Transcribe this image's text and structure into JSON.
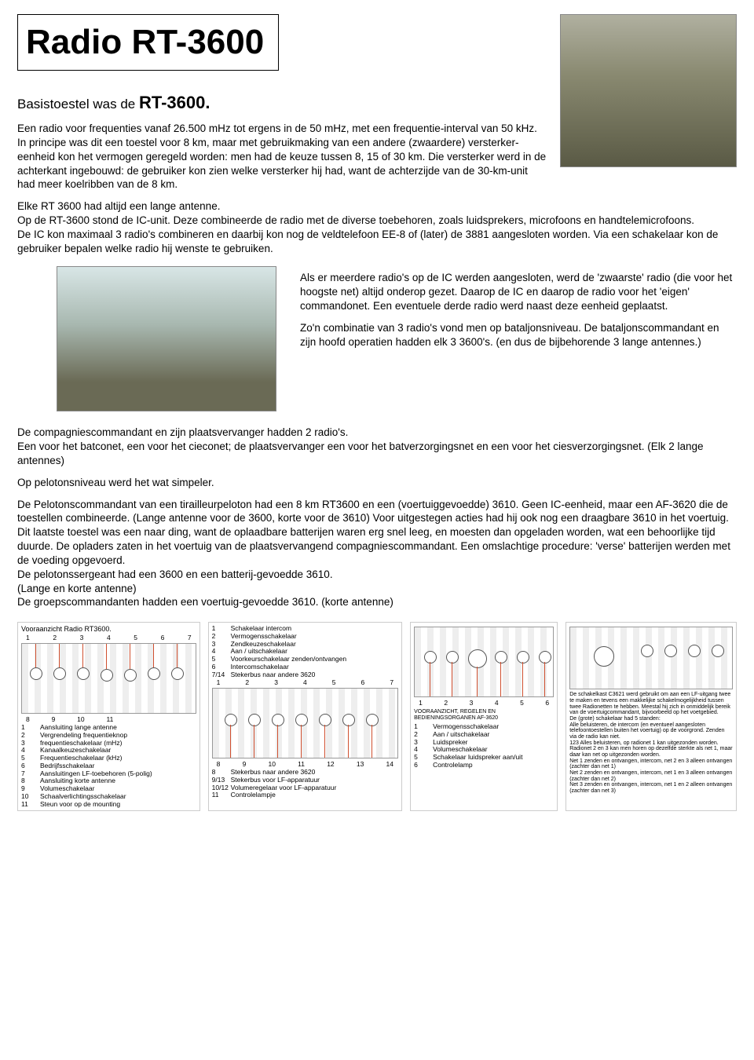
{
  "title": "Radio RT-3600",
  "subtitle_prefix": "Basistoestel was de ",
  "subtitle_model": "RT-3600.",
  "intro_p1": "Een radio voor frequenties vanaf 26.500 mHz tot ergens in de 50 mHz, met een frequentie-interval van 50 kHz. In principe was dit een toestel voor 8 km, maar met gebruikmaking van een andere (zwaardere) versterker-eenheid kon het vermogen geregeld worden: men had de keuze tussen 8, 15 of 30 km. Die versterker werd in de achterkant ingebouwd: de gebruiker kon zien welke versterker hij had, want de achterzijde van de 30-km-unit had meer koelribben van de 8 km.",
  "intro_p2_a": "Elke RT 3600 had altijd een lange antenne.",
  "intro_p2_b": "Op de RT-3600 stond de IC-unit. Deze combineerde de radio met de diverse toebehoren, zoals luidsprekers, microfoons en handtelemicrofoons.",
  "intro_p2_c": "De IC kon maximaal 3 radio's combineren en daarbij kon nog de veldtelefoon EE-8 of (later) de 3881 aangesloten worden. Via een schakelaar kon de gebruiker bepalen welke radio hij wenste te gebruiken.",
  "mid_p1": "Als er meerdere radio's op de IC werden aangesloten, werd de 'zwaarste' radio (die voor het hoogste net) altijd onderop gezet. Daarop de IC en daarop de radio voor het 'eigen' commandonet. Een eventuele derde radio werd naast deze eenheid geplaatst.",
  "mid_p2": "Zo'n combinatie van 3 radio's vond men op bataljonsniveau. De bataljonscommandant en zijn hoofd operatien hadden elk 3 3600's. (en dus de bijbehorende 3 lange antennes.)",
  "lower_p1": "De compagniescommandant en zijn plaatsvervanger hadden 2 radio's.",
  "lower_p2": "Een voor het batconet, een voor het cieconet; de plaatsvervanger een voor het batverzorgingsnet en een voor het ciesverzorgingsnet. (Elk 2 lange antennes)",
  "lower_p3": "Op pelotonsniveau werd het wat simpeler.",
  "lower_p4": "De Pelotonscommandant van een tirailleurpeloton had een 8 km RT3600 en een (voertuiggevoedde) 3610. Geen IC-eenheid, maar een AF-3620 die de toestellen combineerde. (Lange antenne voor de 3600, korte voor de 3610) Voor uitgestegen acties had hij ook nog een draagbare 3610 in het voertuig. Dit laatste toestel was een naar ding, want de oplaadbare batterijen waren erg snel leeg, en moesten dan opgeladen worden, wat een behoorlijke tijd duurde. De opladers zaten in het voertuig van de plaatsvervangend compagniescommandant. Een omslachtige procedure: 'verse' batterijen werden met de voeding opgevoerd.",
  "lower_p5": "De pelotonssergeant had een 3600 en een batterij-gevoedde 3610.",
  "lower_p6": "(Lange en korte antenne)",
  "lower_p7": "De groepscommandanten hadden een voertuig-gevoedde 3610. (korte antenne)",
  "diagrams": {
    "d1": {
      "title": "Vooraanzicht Radio RT3600.",
      "numbers_top": [
        "1",
        "2",
        "3",
        "4",
        "5",
        "6",
        "7"
      ],
      "legend": [
        [
          "1",
          "Aansluiting lange antenne"
        ],
        [
          "2",
          "Vergrendeling frequentieknop"
        ],
        [
          "3",
          "frequentieschakelaar (mHz)"
        ],
        [
          "4",
          "Kanaalkeuzeschakelaar"
        ],
        [
          "5",
          "Frequentieschakelaar (kHz)"
        ],
        [
          "6",
          "Bedrijfsschakelaar"
        ],
        [
          "7",
          "Aansluitingen LF-toebehoren (5-polig)"
        ],
        [
          "8",
          "Aansluiting korte antenne"
        ],
        [
          "9",
          "Volumeschakelaar"
        ],
        [
          "10",
          "Schaalverlichtingsschakelaar"
        ],
        [
          "11",
          "Steun voor op de mounting"
        ]
      ],
      "numbers_bot": [
        "8",
        "9",
        "10",
        "11"
      ]
    },
    "d2": {
      "legend_top": [
        [
          "1",
          "Schakelaar intercom"
        ],
        [
          "2",
          "Vermogensschakelaar"
        ],
        [
          "3",
          "Zendkeuzeschakelaar"
        ],
        [
          "4",
          "Aan / uitschakelaar"
        ],
        [
          "5",
          "Voorkeurschakelaar zenden/ontvangen"
        ],
        [
          "6",
          "Intercomschakelaar"
        ],
        [
          "7/14",
          "Stekerbus naar andere 3620"
        ]
      ],
      "numbers_mid": [
        "1",
        "2",
        "3",
        "4",
        "5",
        "6",
        "7"
      ],
      "legend_bot": [
        [
          "8",
          "Stekerbus naar andere 3620"
        ],
        [
          "9/13",
          "Stekerbus voor LF-apparatuur"
        ],
        [
          "10/12",
          "Volumeregelaar voor LF-apparatuur"
        ],
        [
          "11",
          "Controlelampje"
        ]
      ],
      "numbers_bot": [
        "8",
        "9",
        "10",
        "11",
        "12",
        "13",
        "14"
      ]
    },
    "d3": {
      "numbers_top": [
        "1",
        "2",
        "3",
        "4",
        "5",
        "6"
      ],
      "legend": [
        [
          "1",
          "Vermogensschakelaar"
        ],
        [
          "2",
          "Aan / uitschakelaar"
        ],
        [
          "3",
          "Luidspreker"
        ],
        [
          "4",
          "Volumeschakelaar"
        ],
        [
          "5",
          "Schakelaar luidspreker aan/uit"
        ],
        [
          "6",
          "Controlelamp"
        ]
      ],
      "caption": "VOORAANZICHT, REGELEN EN BEDIENINGSORGANEN AF-3620"
    },
    "d4": {
      "fine": [
        "De schakelkast C3621 werd gebruikt om aan een LF-uitgang twee te maken en tevens een makkelijke schakelmogelijkheid tussen twee Radionetten te hebben. Meestal hij zich in onmiddelijk bereik van de voertuigcommandant, bijvoorbeeld op het voetgebied.",
        "De (grote) schakelaar had 5 standen:",
        "Alle beluisteren, de intercom (en eventueel aangesloten telefoontoestellen buiten het voertuig) op de voorgrond. Zenden via de radio kan niet.",
        "123   Alles beluisteren, op radionet 1 kan uitgezonden worden.",
        "Radionet 2 en 3 kan men horen op dezelfde sterkte als net 1, maar daar kan net op uitgezonden worden.",
        "Net 1 zenden en ontvangen, intercom, net 2 en 3 alleen ontvangen (zachter dan net 1)",
        "Net 2 zenden en ontvangen, intercom, net 1 en 3 alleen ontvangen (zachter dan net 2)",
        "Net 3 zenden en ontvangen, intercom, net 1 en 2 alleen ontvangen (zachter dan net 3)"
      ]
    }
  }
}
